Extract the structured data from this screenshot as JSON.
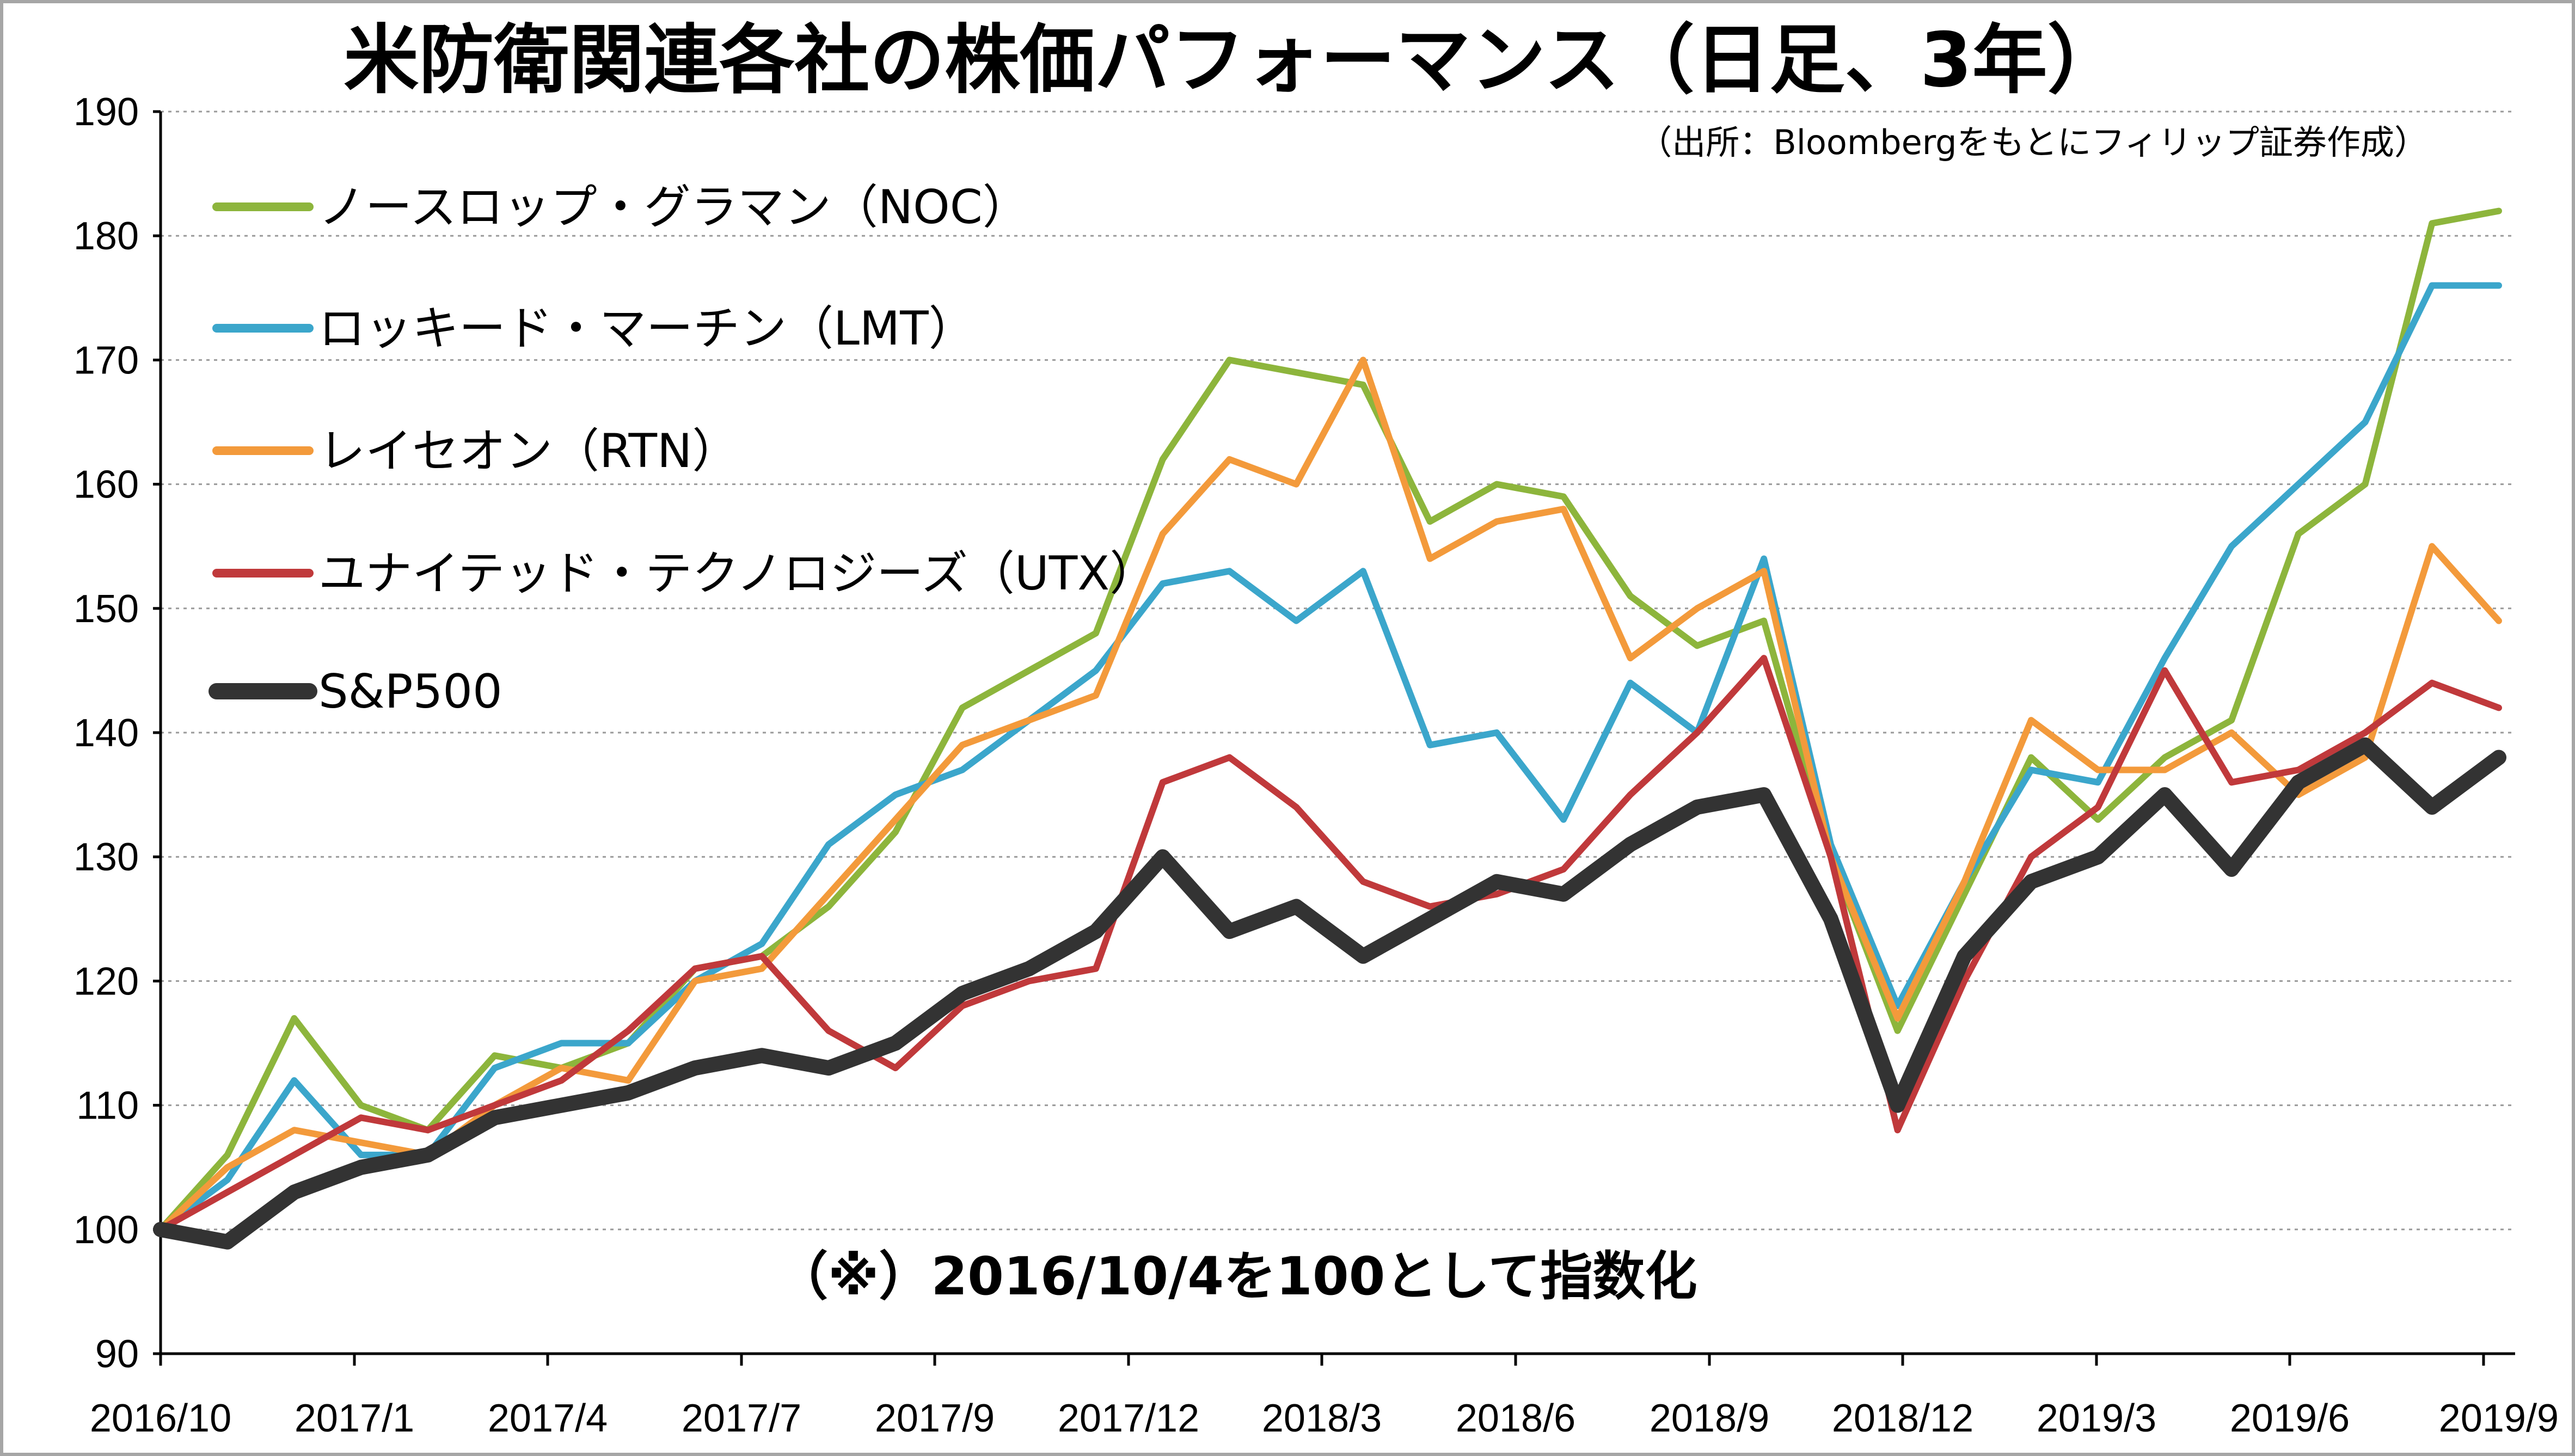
{
  "title": "米防衛関連各社の株価パフォーマンス（日足、3年）",
  "source": "（出所：Bloombergをもとにフィリップ証券作成）",
  "note": "（※）2016/10/4を100として指数化",
  "chart_data": {
    "type": "line",
    "title": "米防衛関連各社の株価パフォーマンス（日足、3年）",
    "xlabel": "",
    "ylabel": "",
    "ylim": [
      90,
      190
    ],
    "yticks": [
      90,
      100,
      110,
      120,
      130,
      140,
      150,
      160,
      170,
      180,
      190
    ],
    "xtick_labels": [
      "2016/10",
      "2017/1",
      "2017/4",
      "2017/7",
      "2017/9",
      "2017/12",
      "2018/3",
      "2018/6",
      "2018/9",
      "2018/12",
      "2019/3",
      "2019/6",
      "2019/9"
    ],
    "grid": true,
    "legend_position": "top-left",
    "x": [
      "2016/10",
      "2016/11",
      "2016/12",
      "2017/1",
      "2017/2",
      "2017/3",
      "2017/4",
      "2017/5",
      "2017/6",
      "2017/7",
      "2017/8",
      "2017/9",
      "2017/10",
      "2017/11",
      "2017/12",
      "2018/1",
      "2018/2",
      "2018/3",
      "2018/4",
      "2018/5",
      "2018/6",
      "2018/7",
      "2018/8",
      "2018/9",
      "2018/10",
      "2018/11",
      "2018/12",
      "2019/1",
      "2019/2",
      "2019/3",
      "2019/4",
      "2019/5",
      "2019/6",
      "2019/7",
      "2019/8",
      "2019/9"
    ],
    "series": [
      {
        "name": "ノースロップ・グラマン（NOC）",
        "color": "#8db53c",
        "stroke": 12,
        "values": [
          100,
          106,
          117,
          110,
          108,
          114,
          113,
          115,
          121,
          122,
          126,
          132,
          142,
          145,
          148,
          162,
          170,
          169,
          168,
          157,
          160,
          159,
          151,
          147,
          149,
          130,
          116,
          127,
          138,
          133,
          138,
          141,
          156,
          160,
          181,
          182
        ]
      },
      {
        "name": "ロッキード・マーチン（LMT）",
        "color": "#3ba6cb",
        "stroke": 12,
        "values": [
          100,
          104,
          112,
          106,
          106,
          113,
          115,
          115,
          120,
          123,
          131,
          135,
          137,
          141,
          145,
          152,
          153,
          149,
          153,
          139,
          140,
          133,
          144,
          140,
          154,
          131,
          118,
          128,
          137,
          136,
          146,
          155,
          160,
          165,
          176,
          176
        ]
      },
      {
        "name": "レイセオン（RTN）",
        "color": "#f39a3b",
        "stroke": 12,
        "values": [
          100,
          105,
          108,
          107,
          106,
          110,
          113,
          112,
          120,
          121,
          127,
          133,
          139,
          141,
          143,
          156,
          162,
          160,
          170,
          154,
          157,
          158,
          146,
          150,
          153,
          130,
          117,
          128,
          141,
          137,
          137,
          140,
          135,
          138,
          155,
          149
        ]
      },
      {
        "name": "ユナイテッド・テクノロジーズ（UTX）",
        "color": "#c0393b",
        "stroke": 12,
        "values": [
          100,
          103,
          106,
          109,
          108,
          110,
          112,
          116,
          121,
          122,
          116,
          113,
          118,
          120,
          121,
          136,
          138,
          134,
          128,
          126,
          127,
          129,
          135,
          140,
          146,
          130,
          108,
          120,
          130,
          134,
          145,
          136,
          137,
          140,
          144,
          142
        ]
      },
      {
        "name": "S&P500",
        "color": "#333333",
        "stroke": 28,
        "values": [
          100,
          99,
          103,
          105,
          106,
          109,
          110,
          111,
          113,
          114,
          113,
          115,
          119,
          121,
          124,
          130,
          124,
          126,
          122,
          125,
          128,
          127,
          131,
          134,
          135,
          125,
          110,
          122,
          128,
          130,
          135,
          129,
          136,
          139,
          134,
          138
        ]
      }
    ]
  }
}
